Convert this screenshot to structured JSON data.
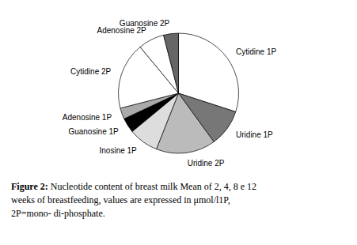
{
  "chart_data": {
    "type": "pie",
    "categories": [
      "Cytidine 1P",
      "Uridine 1P",
      "Uridine 2P",
      "Inosine 1P",
      "Guanosine 1P",
      "Adenosine 1P",
      "Cytidine 2P",
      "Adenosine 2P",
      "Guanosine 2P"
    ],
    "values": [
      30,
      10,
      16,
      8,
      4,
      3,
      18,
      7,
      4
    ],
    "colors": [
      "white",
      "#777777",
      "#bbbbbb",
      "#dddddd",
      "black",
      "#aaaaaa",
      "white",
      "white",
      "#666666"
    ],
    "annotations": [
      "Figure 2: Nucleotide content of breast milk Mean of 2, 4, 8 e 12",
      "weeks of breastfeeding, values are expressed in μmol/l1P,",
      "2P=mono- di-phosphate."
    ]
  }
}
